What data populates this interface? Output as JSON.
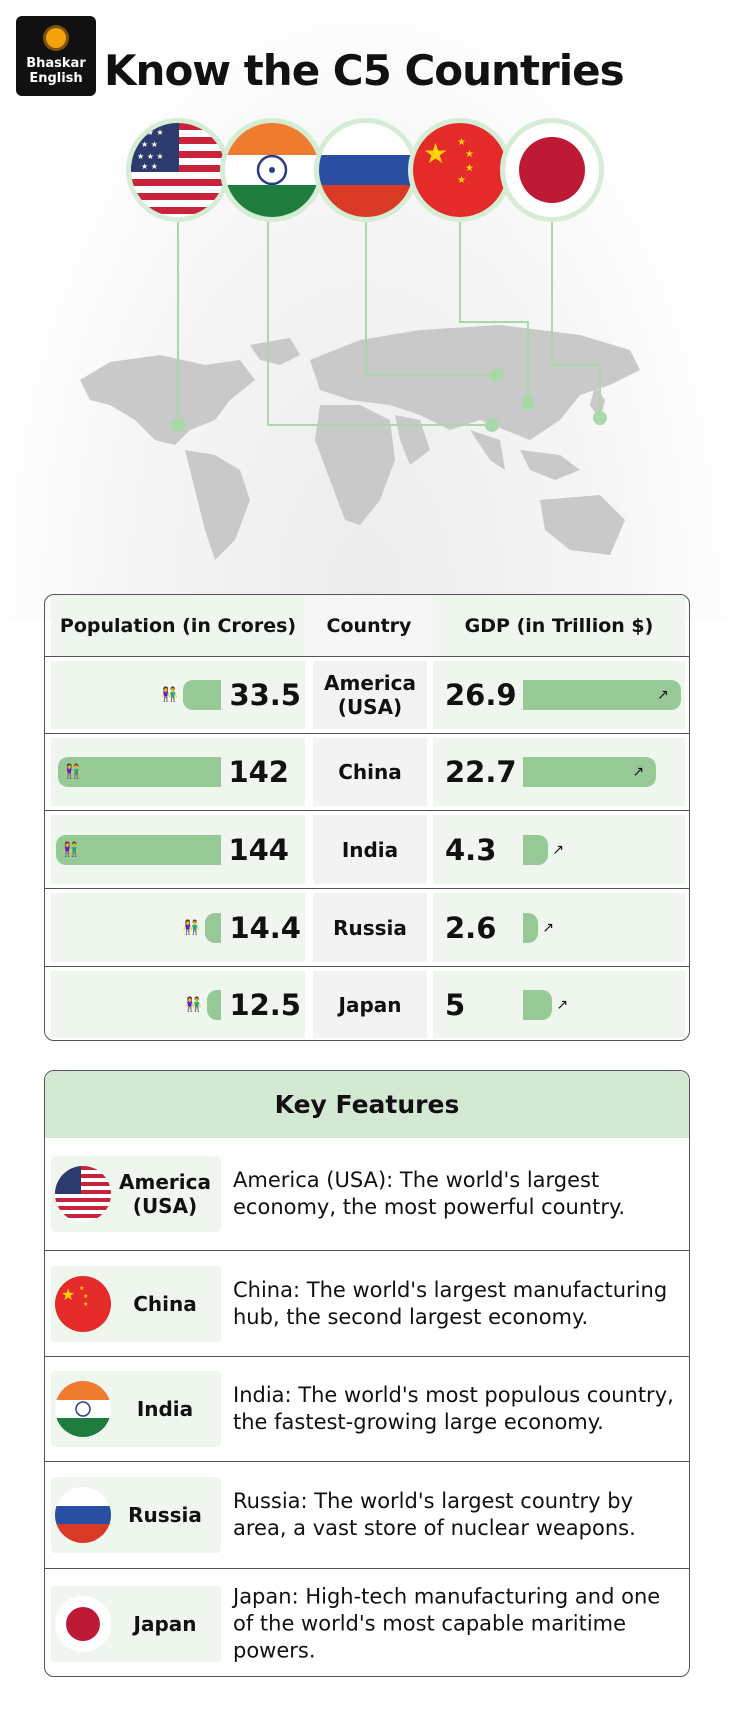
{
  "logo": {
    "line1": "Bhaskar",
    "line2": "English"
  },
  "title": "Know the C5 Countries",
  "table": {
    "headers": {
      "population": "Population (in Crores)",
      "country": "Country",
      "gdp": "GDP (in Trillion $)"
    },
    "rows": [
      {
        "country": "America (USA)",
        "population": "33.5",
        "pop_value": 33.5,
        "gdp": "26.9",
        "gdp_value": 26.9
      },
      {
        "country": "China",
        "population": "142",
        "pop_value": 142,
        "gdp": "22.7",
        "gdp_value": 22.7
      },
      {
        "country": "India",
        "population": "144",
        "pop_value": 144,
        "gdp": "4.3",
        "gdp_value": 4.3
      },
      {
        "country": "Russia",
        "population": "14.4",
        "pop_value": 14.4,
        "gdp": "2.6",
        "gdp_value": 2.6
      },
      {
        "country": "Japan",
        "population": "12.5",
        "pop_value": 12.5,
        "gdp": "5",
        "gdp_value": 5
      }
    ]
  },
  "key_features": {
    "title": "Key Features",
    "items": [
      {
        "country": "America (USA)",
        "flag": "usa",
        "text": "America (USA): The world's largest economy, the most powerful country."
      },
      {
        "country": "China",
        "flag": "china",
        "text": "China: The world's largest manufacturing hub, the second largest economy."
      },
      {
        "country": "India",
        "flag": "india",
        "text": "India: The world's most populous country, the fastest-growing large economy."
      },
      {
        "country": "Russia",
        "flag": "russia",
        "text": "Russia: The world's largest country by area, a vast store of nuclear weapons."
      },
      {
        "country": "Japan",
        "flag": "japan",
        "text": "Japan: High-tech manufacturing and one of the world's most capable maritime powers."
      }
    ]
  },
  "colors": {
    "bar": "#96c996",
    "header_green": "#d3e9d3",
    "cell_green": "#eef6ee"
  }
}
